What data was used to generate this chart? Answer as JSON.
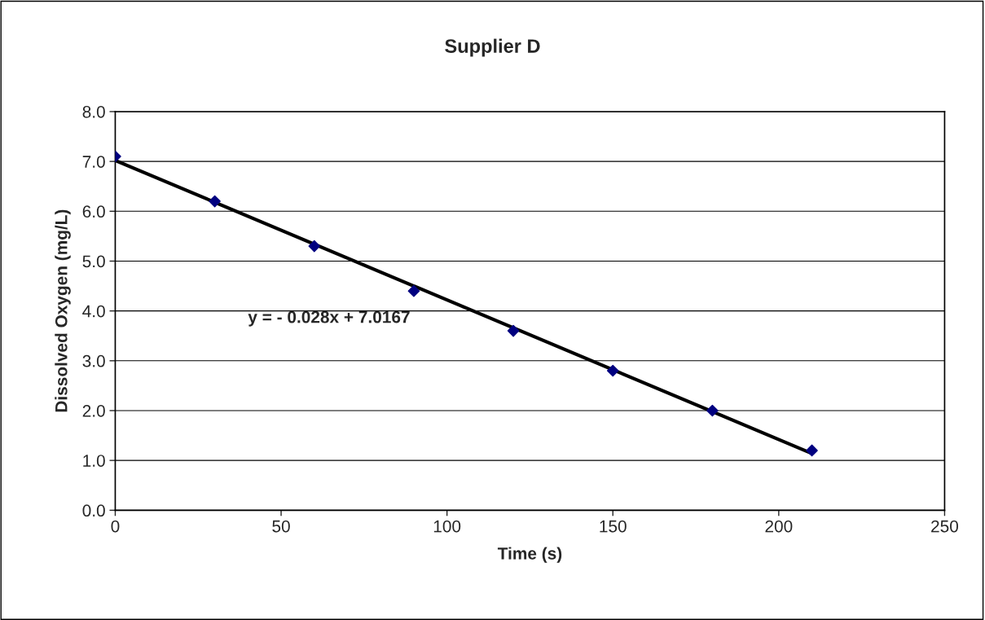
{
  "chart_data": {
    "type": "scatter",
    "title": "Supplier D",
    "xlabel": "Time (s)",
    "ylabel": "Dissolved Oxygen (mg/L)",
    "x": [
      0,
      30,
      60,
      90,
      120,
      150,
      180,
      210
    ],
    "series": [
      {
        "color": "#000080",
        "marker": "diamond",
        "values": [
          7.1,
          6.2,
          5.3,
          4.4,
          3.6,
          2.8,
          2.0,
          1.2
        ]
      },
      {
        "type": "line",
        "color": "#000000",
        "marker": "none",
        "x": [
          0,
          210
        ],
        "values": [
          7.02,
          1.14
        ]
      }
    ],
    "annotations": [
      "y = - 0.028x + 7.0167"
    ],
    "xlim": [
      0,
      250
    ],
    "xticks": [
      0,
      50,
      100,
      150,
      200,
      250
    ],
    "ylim": [
      0,
      8
    ],
    "yticks": [
      {
        "value": 0,
        "label": "0.0"
      },
      {
        "value": 1,
        "label": "1.0"
      },
      {
        "value": 2,
        "label": "2.0"
      },
      {
        "value": 3,
        "label": "3.0"
      },
      {
        "value": 4,
        "label": "4.0"
      },
      {
        "value": 5,
        "label": "5.0"
      },
      {
        "value": 6,
        "label": "6.0"
      },
      {
        "value": 7,
        "label": "7.0"
      },
      {
        "value": 8,
        "label": "8.0"
      }
    ],
    "grid": "y",
    "legend": false
  }
}
